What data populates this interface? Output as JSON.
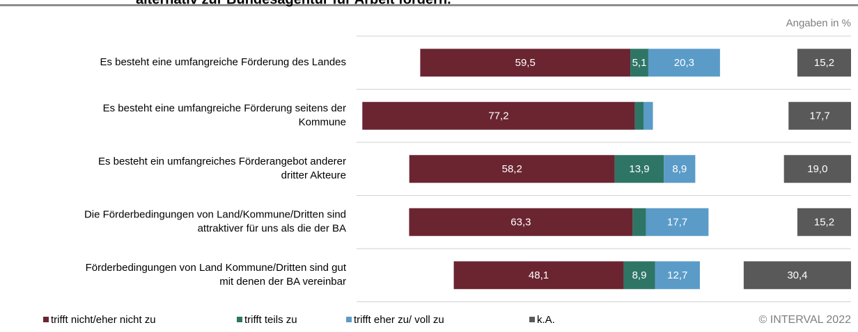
{
  "chart_data": {
    "type": "diverging_bar",
    "title": "alternativ zur Bundesagentur für Arbeit fördern.",
    "unit_note": "Angaben in %",
    "credit": "© INTERVAL 2022",
    "categories": [
      [
        "Es besteht eine umfangreiche Förderung des Landes"
      ],
      [
        "Es besteht eine umfangreiche Förderung seitens der",
        "Kommune"
      ],
      [
        "Es besteht ein umfangreiches Förderangebot anderer",
        "dritter Akteure"
      ],
      [
        "Die Förderbedingungen von Land/Kommune/Dritten sind",
        "attraktiver für uns als die der BA"
      ],
      [
        "Förderbedingungen von Land Kommune/Dritten sind gut",
        "mit denen der BA vereinbar"
      ]
    ],
    "series": [
      {
        "name": "trifft nicht/eher nicht zu",
        "color": "#6a2531",
        "values": [
          59.5,
          77.2,
          58.2,
          63.3,
          48.1
        ],
        "value_labels": [
          "59,5",
          "77,2",
          "58,2",
          "63,3",
          "48,1"
        ]
      },
      {
        "name": "trifft teils zu",
        "color": "#2e7566",
        "values": [
          5.1,
          2.5,
          13.9,
          3.8,
          8.9
        ],
        "value_labels": [
          "5,1",
          null,
          "13,9",
          null,
          "8,9"
        ]
      },
      {
        "name": "trifft eher zu/ voll zu",
        "color": "#5b9bc8",
        "values": [
          20.3,
          2.6,
          8.9,
          17.7,
          12.7
        ],
        "value_labels": [
          "20,3",
          null,
          "8,9",
          "17,7",
          "12,7"
        ]
      },
      {
        "name": "k.A.",
        "color": "#595959",
        "values": [
          15.2,
          17.7,
          19.0,
          15.2,
          30.4
        ],
        "value_labels": [
          "15,2",
          "17,7",
          "19,0",
          "15,2",
          "30,4"
        ]
      }
    ]
  }
}
